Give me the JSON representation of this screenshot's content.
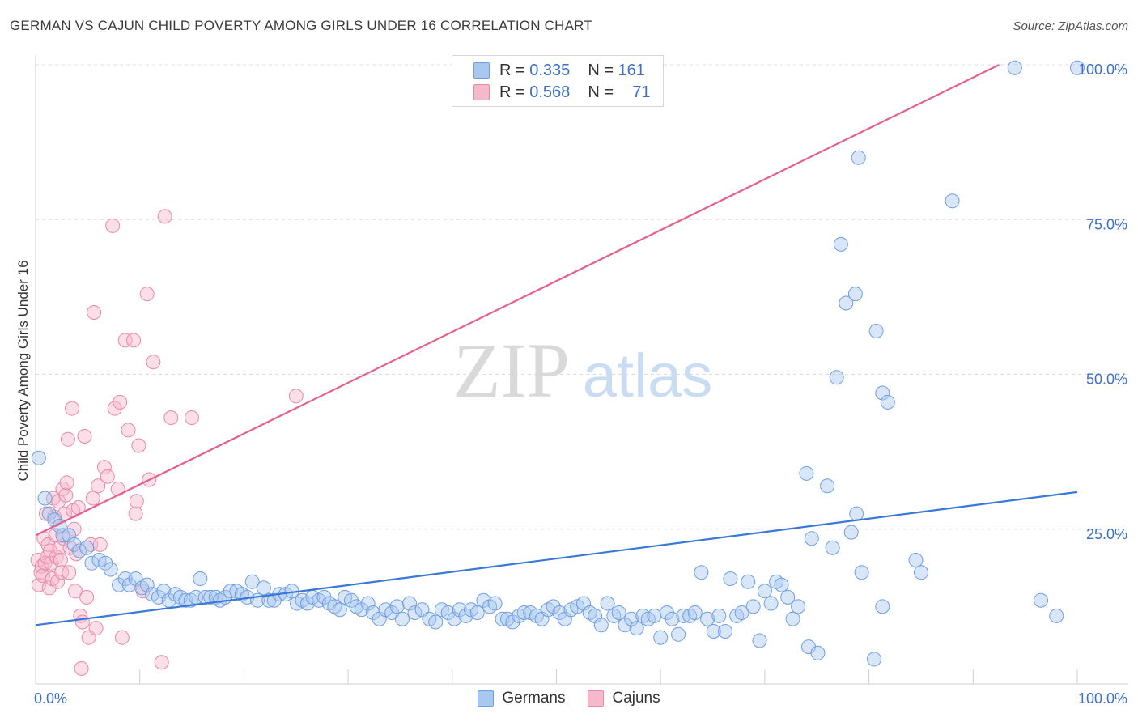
{
  "title": "GERMAN VS CAJUN CHILD POVERTY AMONG GIRLS UNDER 16 CORRELATION CHART",
  "source": "Source: ZipAtlas.com",
  "watermark": {
    "zip": "ZIP",
    "atlas": "atlas"
  },
  "legend": {
    "r_label": "R =",
    "n_label": "N =",
    "series": [
      {
        "name": "Germans",
        "r": "0.335",
        "n": "161",
        "fill": "#a8c8f0",
        "stroke": "#6f9fe0"
      },
      {
        "name": "Cajuns",
        "r": "0.568",
        "n": "71",
        "fill": "#f6b8cb",
        "stroke": "#e889a8"
      }
    ]
  },
  "chart_data": {
    "type": "scatter",
    "title": "GERMAN VS CAJUN CHILD POVERTY AMONG GIRLS UNDER 16 CORRELATION CHART",
    "xlabel": "",
    "ylabel": "Child Poverty Among Girls Under 16",
    "xlim": [
      0,
      100
    ],
    "ylim": [
      0,
      105
    ],
    "x_tick_labels": [
      "0.0%",
      "100.0%"
    ],
    "y_tick_labels": [
      "25.0%",
      "50.0%",
      "75.0%",
      "100.0%"
    ],
    "y_ticks": [
      25,
      50,
      75,
      100
    ],
    "grid": true,
    "legend_position": "top-center",
    "series": [
      {
        "name": "Germans",
        "color": "#5b93e0",
        "line_color": "#3a78d8",
        "trend": {
          "x": [
            0,
            100
          ],
          "y": [
            9.5,
            31
          ]
        },
        "points": [
          [
            0.3,
            36.5
          ],
          [
            0.9,
            30
          ],
          [
            1.3,
            27.5
          ],
          [
            1.8,
            26.5
          ],
          [
            2.3,
            25.5
          ],
          [
            2.6,
            24
          ],
          [
            3.2,
            24
          ],
          [
            3.7,
            22.5
          ],
          [
            4.2,
            21.5
          ],
          [
            4.9,
            22
          ],
          [
            5.4,
            19.5
          ],
          [
            6.1,
            20
          ],
          [
            6.7,
            19.5
          ],
          [
            7.2,
            18.5
          ],
          [
            8,
            16
          ],
          [
            8.6,
            17
          ],
          [
            9,
            16
          ],
          [
            9.6,
            17
          ],
          [
            10.2,
            15.5
          ],
          [
            10.7,
            16
          ],
          [
            11.2,
            14.5
          ],
          [
            11.8,
            14
          ],
          [
            12.3,
            15
          ],
          [
            12.8,
            13.5
          ],
          [
            13.4,
            14.5
          ],
          [
            13.9,
            14
          ],
          [
            14.4,
            13.5
          ],
          [
            14.9,
            13.5
          ],
          [
            15.4,
            14
          ],
          [
            15.8,
            17
          ],
          [
            16.3,
            14
          ],
          [
            16.8,
            14
          ],
          [
            17.3,
            14
          ],
          [
            17.7,
            13.5
          ],
          [
            18.2,
            14
          ],
          [
            18.7,
            15
          ],
          [
            19.3,
            15
          ],
          [
            19.8,
            14.5
          ],
          [
            20.3,
            14
          ],
          [
            20.8,
            16.5
          ],
          [
            21.3,
            13.5
          ],
          [
            21.9,
            15.5
          ],
          [
            22.4,
            13.5
          ],
          [
            22.9,
            13.5
          ],
          [
            23.4,
            14.5
          ],
          [
            24,
            14.5
          ],
          [
            24.6,
            15
          ],
          [
            25.1,
            13
          ],
          [
            25.6,
            13.5
          ],
          [
            26.1,
            13
          ],
          [
            26.6,
            14
          ],
          [
            27.2,
            13.5
          ],
          [
            27.7,
            14
          ],
          [
            28.2,
            13
          ],
          [
            28.7,
            12.5
          ],
          [
            29.2,
            12
          ],
          [
            29.7,
            14
          ],
          [
            30.3,
            13.5
          ],
          [
            30.8,
            12.5
          ],
          [
            31.3,
            12
          ],
          [
            31.9,
            13
          ],
          [
            32.4,
            11.5
          ],
          [
            33,
            10.5
          ],
          [
            33.6,
            12
          ],
          [
            34.2,
            11.5
          ],
          [
            34.7,
            12.5
          ],
          [
            35.2,
            10.5
          ],
          [
            35.9,
            13
          ],
          [
            36.4,
            11.5
          ],
          [
            37.1,
            12
          ],
          [
            37.8,
            10.5
          ],
          [
            38.4,
            10
          ],
          [
            39,
            12
          ],
          [
            39.6,
            11.5
          ],
          [
            40.2,
            10.5
          ],
          [
            40.7,
            12
          ],
          [
            41.3,
            11
          ],
          [
            41.8,
            12
          ],
          [
            42.4,
            11.5
          ],
          [
            43,
            13.5
          ],
          [
            43.6,
            12.5
          ],
          [
            44.1,
            13
          ],
          [
            44.8,
            10.5
          ],
          [
            45.3,
            10.5
          ],
          [
            45.8,
            10
          ],
          [
            46.4,
            11
          ],
          [
            46.9,
            11.5
          ],
          [
            47.5,
            11.5
          ],
          [
            48.1,
            11
          ],
          [
            48.6,
            10.5
          ],
          [
            49.2,
            12
          ],
          [
            49.7,
            12.5
          ],
          [
            50.3,
            11.5
          ],
          [
            50.8,
            10.5
          ],
          [
            51.4,
            12
          ],
          [
            52,
            12.5
          ],
          [
            52.6,
            13
          ],
          [
            53.2,
            11.5
          ],
          [
            53.7,
            11
          ],
          [
            54.3,
            9.5
          ],
          [
            54.9,
            13
          ],
          [
            55.5,
            11
          ],
          [
            56,
            11.5
          ],
          [
            56.6,
            9.5
          ],
          [
            57.2,
            10.5
          ],
          [
            57.7,
            9
          ],
          [
            58.3,
            11
          ],
          [
            58.8,
            10.5
          ],
          [
            59.4,
            11
          ],
          [
            60,
            7.5
          ],
          [
            60.6,
            11.5
          ],
          [
            61.1,
            10.5
          ],
          [
            61.7,
            8
          ],
          [
            62.2,
            11
          ],
          [
            62.8,
            11
          ],
          [
            63.3,
            11.5
          ],
          [
            63.9,
            18
          ],
          [
            64.5,
            10.5
          ],
          [
            65.1,
            8.5
          ],
          [
            65.6,
            11
          ],
          [
            66.2,
            8.5
          ],
          [
            66.7,
            17
          ],
          [
            67.3,
            11
          ],
          [
            67.8,
            11.5
          ],
          [
            68.4,
            16.5
          ],
          [
            68.9,
            12.5
          ],
          [
            69.5,
            7
          ],
          [
            70,
            15
          ],
          [
            70.6,
            13
          ],
          [
            71.1,
            16.5
          ],
          [
            71.6,
            16
          ],
          [
            72.2,
            14
          ],
          [
            72.7,
            10.5
          ],
          [
            73.2,
            12.5
          ],
          [
            74.2,
            6
          ],
          [
            74.5,
            23.5
          ],
          [
            75.1,
            5
          ],
          [
            74,
            34
          ],
          [
            76,
            32
          ],
          [
            76.5,
            22
          ],
          [
            76.9,
            49.5
          ],
          [
            77.3,
            71
          ],
          [
            77.8,
            61.5
          ],
          [
            78.3,
            24.5
          ],
          [
            78.8,
            27.5
          ],
          [
            79.3,
            18
          ],
          [
            79,
            85
          ],
          [
            78.7,
            63
          ],
          [
            80.5,
            4
          ],
          [
            81.3,
            12.5
          ],
          [
            80.7,
            57
          ],
          [
            81.3,
            47
          ],
          [
            81.8,
            45.5
          ],
          [
            84.5,
            20
          ],
          [
            85,
            18
          ],
          [
            88,
            78
          ],
          [
            94,
            99.5
          ],
          [
            100,
            99.5
          ],
          [
            96.5,
            13.5
          ],
          [
            98,
            11
          ]
        ]
      },
      {
        "name": "Cajuns",
        "color": "#ef8fae",
        "line_color": "#e6608f",
        "trend": {
          "x": [
            0,
            92.5
          ],
          "y": [
            24,
            100
          ]
        },
        "points": [
          [
            0.2,
            20
          ],
          [
            0.3,
            16
          ],
          [
            0.5,
            18
          ],
          [
            0.6,
            19
          ],
          [
            0.7,
            17.5
          ],
          [
            0.8,
            23.5
          ],
          [
            0.9,
            19.5
          ],
          [
            1,
            27.5
          ],
          [
            1.1,
            20.5
          ],
          [
            1.2,
            22.5
          ],
          [
            1.3,
            15.5
          ],
          [
            1.4,
            21.5
          ],
          [
            1.5,
            19.5
          ],
          [
            1.6,
            17
          ],
          [
            1.7,
            30
          ],
          [
            1.8,
            27
          ],
          [
            1.9,
            24
          ],
          [
            2,
            20.5
          ],
          [
            2.1,
            16.5
          ],
          [
            2.2,
            29.5
          ],
          [
            2.3,
            22
          ],
          [
            2.4,
            20
          ],
          [
            2.5,
            18
          ],
          [
            2.6,
            31.5
          ],
          [
            2.7,
            23.5
          ],
          [
            2.8,
            27.5
          ],
          [
            2.9,
            30.5
          ],
          [
            3,
            32.5
          ],
          [
            3.1,
            39.5
          ],
          [
            3.2,
            18
          ],
          [
            3.3,
            22
          ],
          [
            3.5,
            44.5
          ],
          [
            3.6,
            28
          ],
          [
            3.7,
            25
          ],
          [
            3.8,
            15
          ],
          [
            3.9,
            21
          ],
          [
            4.1,
            28.5
          ],
          [
            4.3,
            11
          ],
          [
            4.5,
            10
          ],
          [
            4.7,
            40
          ],
          [
            4.9,
            14
          ],
          [
            5.1,
            7.5
          ],
          [
            5.3,
            22.5
          ],
          [
            5.5,
            30
          ],
          [
            5.6,
            60
          ],
          [
            5.8,
            9
          ],
          [
            6,
            32
          ],
          [
            6.2,
            22.5
          ],
          [
            6.6,
            35
          ],
          [
            6.9,
            33.5
          ],
          [
            7.4,
            74
          ],
          [
            7.6,
            44.5
          ],
          [
            7.9,
            31.5
          ],
          [
            8.1,
            45.5
          ],
          [
            8.3,
            7.5
          ],
          [
            8.6,
            55.5
          ],
          [
            8.9,
            41
          ],
          [
            9.4,
            55.5
          ],
          [
            9.6,
            27.5
          ],
          [
            9.7,
            29.5
          ],
          [
            9.9,
            38.5
          ],
          [
            10.3,
            15
          ],
          [
            10.7,
            63
          ],
          [
            10.9,
            33
          ],
          [
            11.3,
            52
          ],
          [
            12.1,
            3.5
          ],
          [
            12.4,
            75.5
          ],
          [
            13,
            43
          ],
          [
            15,
            43
          ],
          [
            25,
            46.5
          ],
          [
            4.4,
            2.5
          ]
        ]
      }
    ]
  }
}
